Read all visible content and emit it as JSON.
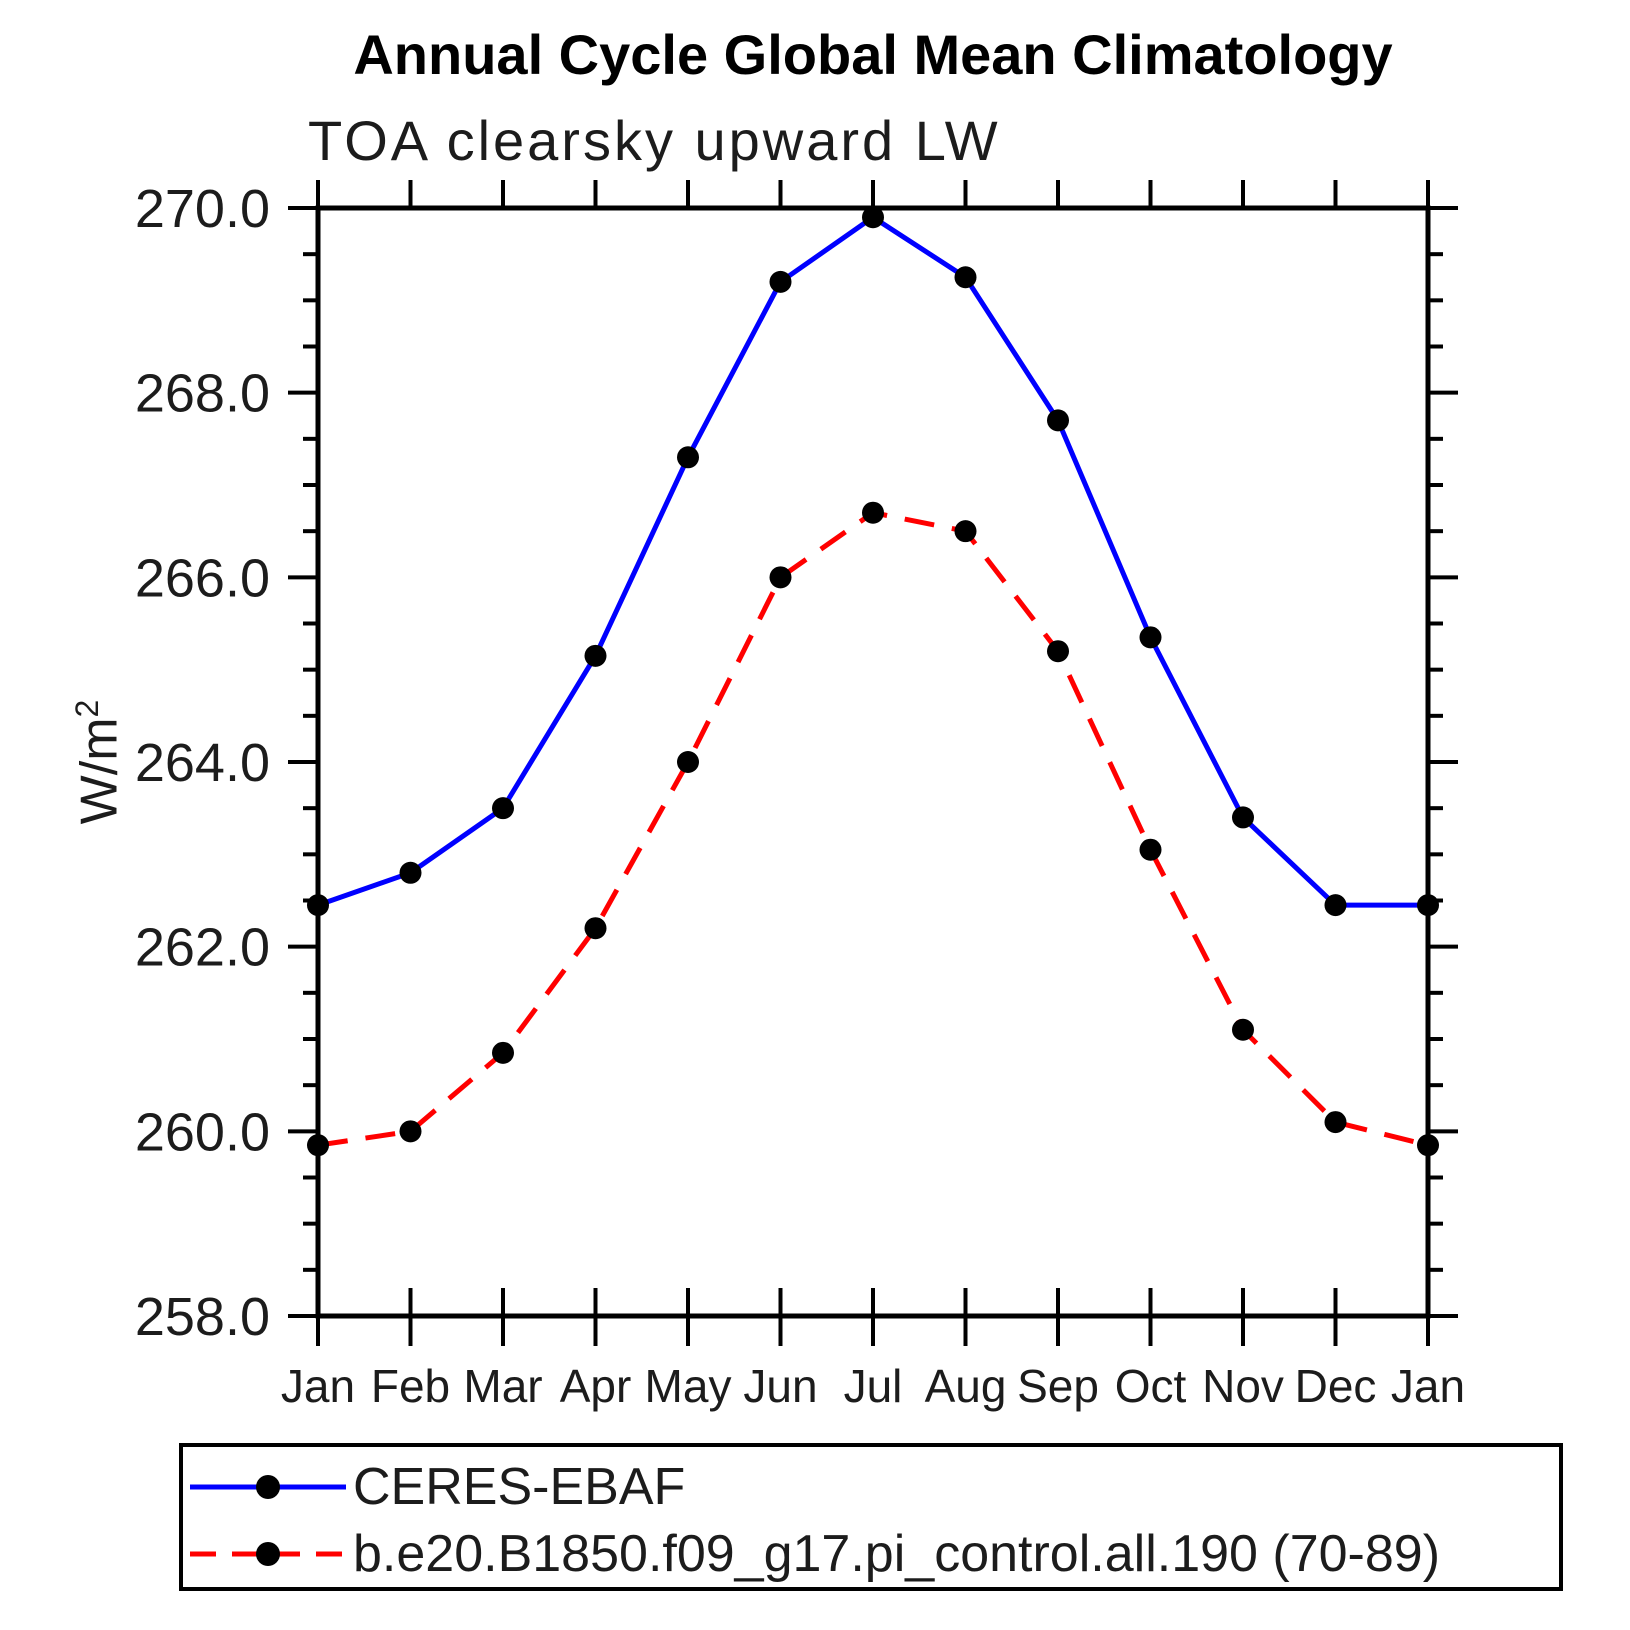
{
  "title": "Annual Cycle Global Mean Climatology",
  "subtitle": "TOA clearsky upward LW",
  "y_axis": {
    "label_base": "W/m",
    "label_exponent": "2",
    "tick_labels": [
      "258.0",
      "260.0",
      "262.0",
      "264.0",
      "266.0",
      "268.0",
      "270.0"
    ]
  },
  "x_axis": {
    "tick_labels": [
      "Jan",
      "Feb",
      "Mar",
      "Apr",
      "May",
      "Jun",
      "Jul",
      "Aug",
      "Sep",
      "Oct",
      "Nov",
      "Dec",
      "Jan"
    ]
  },
  "chart_data": {
    "type": "line",
    "title": "Annual Cycle Global Mean Climatology",
    "subtitle": "TOA clearsky upward LW",
    "ylabel": "W/m^2",
    "xlabel": "",
    "ylim": [
      258.0,
      270.0
    ],
    "ytick_step": 2.0,
    "yminor_step": 0.5,
    "grid": false,
    "legend_position": "bottom-left-box",
    "categories": [
      "Jan",
      "Feb",
      "Mar",
      "Apr",
      "May",
      "Jun",
      "Jul",
      "Aug",
      "Sep",
      "Oct",
      "Nov",
      "Dec",
      "Jan"
    ],
    "series": [
      {
        "name": "CERES-EBAF",
        "color": "#0000ff",
        "line_style": "solid",
        "marker": "circle",
        "marker_color": "#000000",
        "values": [
          262.45,
          262.8,
          263.5,
          265.15,
          267.3,
          269.2,
          269.9,
          269.25,
          267.7,
          265.35,
          263.4,
          262.45,
          262.45
        ]
      },
      {
        "name": "b.e20.B1850.f09_g17.pi_control.all.190 (70-89)",
        "color": "#ff0000",
        "line_style": "dashed",
        "marker": "circle",
        "marker_color": "#000000",
        "values": [
          259.85,
          260.0,
          260.85,
          262.2,
          264.0,
          266.0,
          266.7,
          266.5,
          265.2,
          263.05,
          261.1,
          260.1,
          259.85
        ]
      }
    ],
    "axis_color": "#000000",
    "text_color": "#1c1c1c"
  }
}
